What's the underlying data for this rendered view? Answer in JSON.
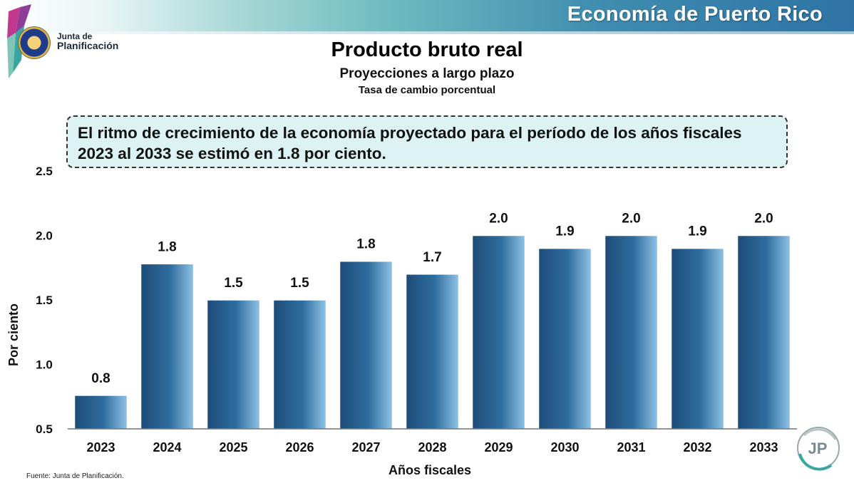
{
  "header": {
    "title": "Economía de Puerto Rico",
    "logo_line1": "Junta de",
    "logo_line2": "Planificación"
  },
  "titles": {
    "main": "Producto bruto real",
    "subtitle": "Proyecciones a largo plazo",
    "subsubtitle": "Tasa  de cambio porcentual"
  },
  "callout": {
    "text": "El ritmo de crecimiento de la economía proyectado para el período de los años fiscales 2023 al 2033 se estimó en 1.8 por ciento."
  },
  "footer": {
    "source": "Fuente: Junta de Planificación.",
    "jp_logo_text": "JP"
  },
  "colors": {
    "bar_dark": "#1d4c78",
    "bar_mid": "#2f6d9e",
    "bar_light": "#8fc3e6",
    "header_accent": "#2e73a4"
  },
  "chart_data": {
    "type": "bar",
    "title": "Producto bruto real",
    "xlabel": "Años fiscales",
    "ylabel": "Por ciento",
    "categories": [
      "2023",
      "2024",
      "2025",
      "2026",
      "2027",
      "2028",
      "2029",
      "2030",
      "2031",
      "2032",
      "2033"
    ],
    "values": [
      0.76,
      1.78,
      1.5,
      1.5,
      1.8,
      1.7,
      2.0,
      1.9,
      2.0,
      1.9,
      2.0
    ],
    "data_labels": [
      "0.8",
      "1.8",
      "1.5",
      "1.5",
      "1.8",
      "1.7",
      "2.0",
      "1.9",
      "2.0",
      "1.9",
      "2.0"
    ],
    "ylim": [
      0.5,
      2.5
    ],
    "yticks": [
      "0.5",
      "1.0",
      "1.5",
      "2.0",
      "2.5"
    ],
    "grid": false,
    "legend": "none"
  }
}
